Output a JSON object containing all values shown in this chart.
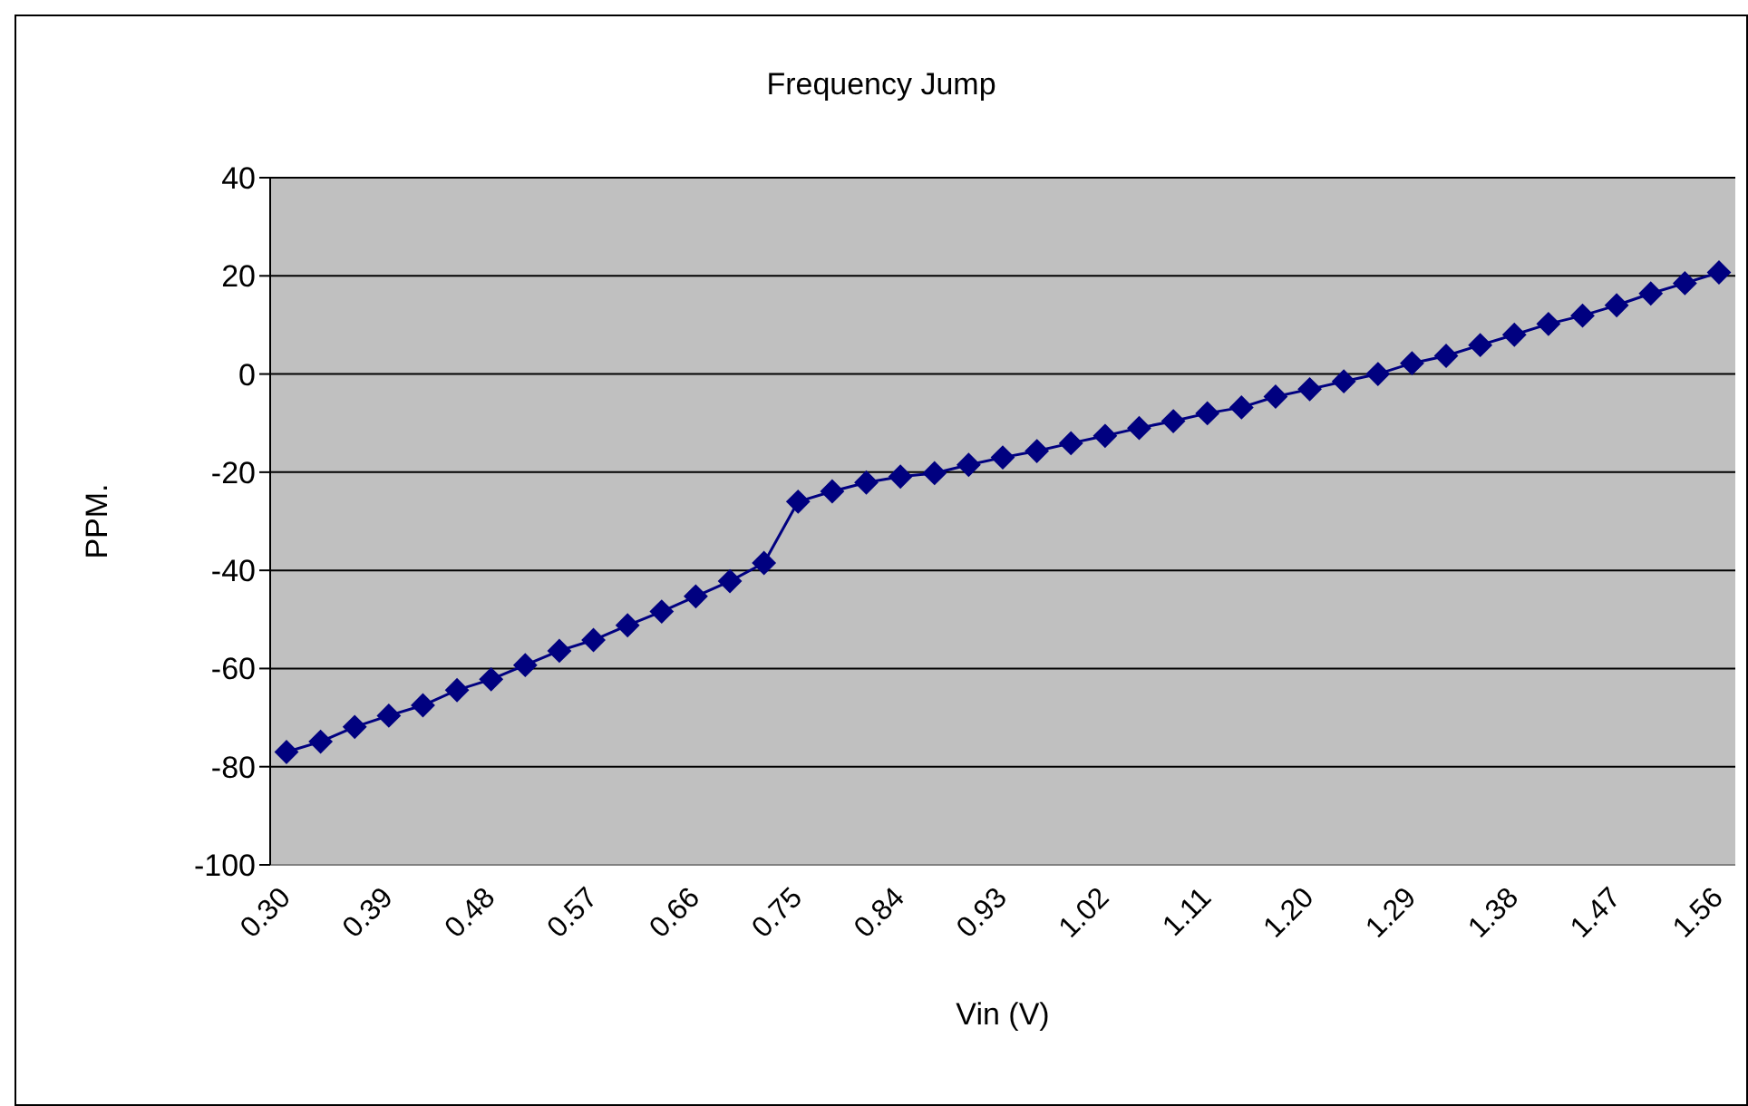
{
  "chart_data": {
    "type": "line",
    "title": "Frequency Jump",
    "xlabel": "Vin (V)",
    "ylabel": "PPM.",
    "categories": [
      "0.30",
      null,
      null,
      "0.39",
      null,
      null,
      "0.48",
      null,
      null,
      "0.57",
      null,
      null,
      "0.66",
      null,
      null,
      "0.75",
      null,
      null,
      "0.84",
      null,
      null,
      "0.93",
      null,
      null,
      "1.02",
      null,
      null,
      "1.11",
      null,
      null,
      "1.20",
      null,
      null,
      "1.29",
      null,
      null,
      "1.38",
      null,
      null,
      "1.47",
      null,
      null,
      "1.56"
    ],
    "series": [
      {
        "color": "#000080",
        "values": [
          -77.0,
          -74.9,
          -71.9,
          -69.6,
          -67.5,
          -64.4,
          -62.2,
          -59.3,
          -56.4,
          -54.2,
          -51.2,
          -48.4,
          -45.3,
          -42.2,
          -38.5,
          -26.0,
          -23.9,
          -22.1,
          -20.9,
          -20.2,
          -18.5,
          -17.0,
          -15.7,
          -14.1,
          -12.6,
          -11.0,
          -9.6,
          -8.0,
          -6.8,
          -4.6,
          -3.1,
          -1.5,
          0,
          2.2,
          3.7,
          5.9,
          8.0,
          10.2,
          11.9,
          14.0,
          16.4,
          18.5,
          20.7
        ]
      }
    ],
    "ylim": [
      -100,
      40
    ],
    "yticks": [
      -100,
      -80,
      -60,
      -40,
      -20,
      0,
      20,
      40
    ],
    "grid": "y",
    "legend": false,
    "marker": "diamond",
    "line_style": "solid"
  }
}
